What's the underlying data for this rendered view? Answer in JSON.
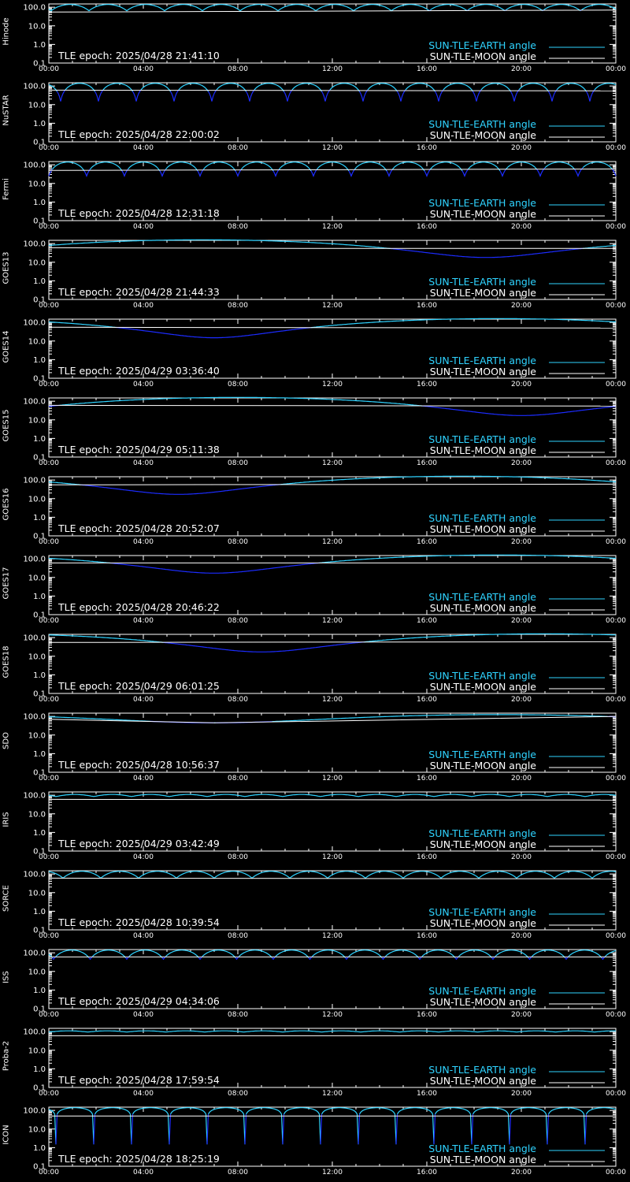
{
  "colors": {
    "earth_above": "#2fd3ff",
    "earth_below": "#1c2cff",
    "moon": "#ffffff",
    "axes": "#ffffff",
    "background": "#000000"
  },
  "legend": {
    "earth": "SUN-TLE-EARTH angle",
    "moon": "SUN-TLE-MOON angle"
  },
  "epoch_prefix": "TLE epoch: ",
  "chart_data": [
    {
      "type": "line",
      "satellite": "Hinode",
      "epoch": "2025/04/28 21:41:10",
      "x_ticks": [
        "00:00",
        "04:00",
        "08:00",
        "12:00",
        "16:00",
        "20:00",
        "00:00"
      ],
      "y_ticks": [
        "100.0",
        "10.0",
        "1.0",
        "0.1"
      ],
      "ylim": [
        0.1,
        150
      ],
      "yscale": "log",
      "xlim_hours": [
        0,
        24
      ],
      "earth": {
        "kind": "orbit",
        "period_h": 1.6,
        "max": 140,
        "min": 65,
        "phase_h": 0.1
      },
      "moon": {
        "points": [
          [
            0,
            55
          ],
          [
            24,
            70
          ]
        ]
      }
    },
    {
      "type": "line",
      "satellite": "NuSTAR",
      "epoch": "2025/04/28 22:00:02",
      "x_ticks": [
        "00:00",
        "04:00",
        "08:00",
        "12:00",
        "16:00",
        "20:00",
        "00:00"
      ],
      "y_ticks": [
        "100.0",
        "10.0",
        "1.0",
        "0.1"
      ],
      "ylim": [
        0.1,
        150
      ],
      "yscale": "log",
      "xlim_hours": [
        0,
        24
      ],
      "earth": {
        "kind": "orbit",
        "period_h": 1.6,
        "max": 140,
        "min": 15,
        "phase_h": 0.5
      },
      "moon": {
        "points": [
          [
            0,
            60
          ],
          [
            24,
            55
          ]
        ]
      }
    },
    {
      "type": "line",
      "satellite": "Fermi",
      "epoch": "2025/04/28 12:31:18",
      "x_ticks": [
        "00:00",
        "04:00",
        "08:00",
        "12:00",
        "16:00",
        "20:00",
        "00:00"
      ],
      "y_ticks": [
        "100.0",
        "10.0",
        "1.0",
        "0.1"
      ],
      "ylim": [
        0.1,
        150
      ],
      "yscale": "log",
      "xlim_hours": [
        0,
        24
      ],
      "earth": {
        "kind": "orbit",
        "period_h": 1.6,
        "max": 140,
        "min": 25,
        "phase_h": 0.0
      },
      "moon": {
        "points": [
          [
            0,
            50
          ],
          [
            24,
            60
          ]
        ]
      }
    },
    {
      "type": "line",
      "satellite": "GOES13",
      "epoch": "2025/04/28 21:44:33",
      "x_ticks": [
        "00:00",
        "04:00",
        "08:00",
        "12:00",
        "16:00",
        "20:00",
        "00:00"
      ],
      "y_ticks": [
        "100.0",
        "10.0",
        "1.0",
        "0.1"
      ],
      "ylim": [
        0.1,
        150
      ],
      "yscale": "log",
      "xlim_hours": [
        0,
        24
      ],
      "earth": {
        "kind": "geo",
        "max": 160,
        "min": 18,
        "t_min_h": 18.5
      },
      "moon": {
        "points": [
          [
            0,
            60
          ],
          [
            12,
            55
          ],
          [
            24,
            55
          ]
        ]
      }
    },
    {
      "type": "line",
      "satellite": "GOES14",
      "epoch": "2025/04/29 03:36:40",
      "x_ticks": [
        "00:00",
        "04:00",
        "08:00",
        "12:00",
        "16:00",
        "20:00",
        "00:00"
      ],
      "y_ticks": [
        "100.0",
        "10.0",
        "1.0",
        "0.1"
      ],
      "ylim": [
        0.1,
        150
      ],
      "yscale": "log",
      "xlim_hours": [
        0,
        24
      ],
      "earth": {
        "kind": "geo",
        "max": 160,
        "min": 15,
        "t_min_h": 7.0
      },
      "moon": {
        "points": [
          [
            0,
            55
          ],
          [
            24,
            50
          ]
        ]
      }
    },
    {
      "type": "line",
      "satellite": "GOES15",
      "epoch": "2025/04/29 05:11:38",
      "x_ticks": [
        "00:00",
        "04:00",
        "08:00",
        "12:00",
        "16:00",
        "20:00",
        "00:00"
      ],
      "y_ticks": [
        "100.0",
        "10.0",
        "1.0",
        "0.1"
      ],
      "ylim": [
        0.1,
        150
      ],
      "yscale": "log",
      "xlim_hours": [
        0,
        24
      ],
      "earth": {
        "kind": "geo",
        "max": 160,
        "min": 17,
        "t_min_h": 20.0
      },
      "moon": {
        "points": [
          [
            0,
            60
          ],
          [
            24,
            55
          ]
        ]
      }
    },
    {
      "type": "line",
      "satellite": "GOES16",
      "epoch": "2025/04/28 20:52:07",
      "x_ticks": [
        "00:00",
        "04:00",
        "08:00",
        "12:00",
        "16:00",
        "20:00",
        "00:00"
      ],
      "y_ticks": [
        "100.0",
        "10.0",
        "1.0",
        "0.1"
      ],
      "ylim": [
        0.1,
        150
      ],
      "yscale": "log",
      "xlim_hours": [
        0,
        24
      ],
      "earth": {
        "kind": "geo",
        "max": 160,
        "min": 17,
        "t_min_h": 5.5
      },
      "moon": {
        "points": [
          [
            0,
            55
          ],
          [
            24,
            60
          ]
        ]
      }
    },
    {
      "type": "line",
      "satellite": "GOES17",
      "epoch": "2025/04/28 20:46:22",
      "x_ticks": [
        "00:00",
        "04:00",
        "08:00",
        "12:00",
        "16:00",
        "20:00",
        "00:00"
      ],
      "y_ticks": [
        "100.0",
        "10.0",
        "1.0",
        "0.1"
      ],
      "ylim": [
        0.1,
        150
      ],
      "yscale": "log",
      "xlim_hours": [
        0,
        24
      ],
      "earth": {
        "kind": "geo",
        "max": 160,
        "min": 17,
        "t_min_h": 7.0
      },
      "moon": {
        "points": [
          [
            0,
            60
          ],
          [
            24,
            60
          ]
        ]
      }
    },
    {
      "type": "line",
      "satellite": "GOES18",
      "epoch": "2025/04/29 06:01:25",
      "x_ticks": [
        "00:00",
        "04:00",
        "08:00",
        "12:00",
        "16:00",
        "20:00",
        "00:00"
      ],
      "y_ticks": [
        "100.0",
        "10.0",
        "1.0",
        "0.1"
      ],
      "ylim": [
        0.1,
        150
      ],
      "yscale": "log",
      "xlim_hours": [
        0,
        24
      ],
      "earth": {
        "kind": "geo",
        "max": 160,
        "min": 17,
        "t_min_h": 9.0
      },
      "moon": {
        "points": [
          [
            0,
            55
          ],
          [
            24,
            60
          ]
        ]
      }
    },
    {
      "type": "line",
      "satellite": "SDO",
      "epoch": "2025/04/28 10:56:37",
      "x_ticks": [
        "00:00",
        "04:00",
        "08:00",
        "12:00",
        "16:00",
        "20:00",
        "00:00"
      ],
      "y_ticks": [
        "100.0",
        "10.0",
        "1.0",
        "0.1"
      ],
      "ylim": [
        0.1,
        150
      ],
      "yscale": "log",
      "xlim_hours": [
        0,
        24
      ],
      "earth": {
        "kind": "geo",
        "max": 125,
        "min": 45,
        "t_min_h": 7.0
      },
      "moon": {
        "points": [
          [
            0,
            70
          ],
          [
            7,
            45
          ],
          [
            24,
            100
          ]
        ]
      }
    },
    {
      "type": "line",
      "satellite": "IRIS",
      "epoch": "2025/04/29 03:42:49",
      "x_ticks": [
        "00:00",
        "04:00",
        "08:00",
        "12:00",
        "16:00",
        "20:00",
        "00:00"
      ],
      "y_ticks": [
        "100.0",
        "10.0",
        "1.0",
        "0.1"
      ],
      "ylim": [
        0.1,
        150
      ],
      "yscale": "log",
      "xlim_hours": [
        0,
        24
      ],
      "earth": {
        "kind": "orbit",
        "period_h": 1.6,
        "max": 110,
        "min": 85,
        "phase_h": 0.3
      },
      "moon": {
        "points": [
          [
            0,
            60
          ],
          [
            24,
            55
          ]
        ]
      }
    },
    {
      "type": "line",
      "satellite": "SORCE",
      "epoch": "2025/04/28 10:39:54",
      "x_ticks": [
        "00:00",
        "04:00",
        "08:00",
        "12:00",
        "16:00",
        "20:00",
        "00:00"
      ],
      "y_ticks": [
        "100.0",
        "10.0",
        "1.0",
        "0.1"
      ],
      "ylim": [
        0.1,
        150
      ],
      "yscale": "log",
      "xlim_hours": [
        0,
        24
      ],
      "earth": {
        "kind": "orbit",
        "period_h": 1.6,
        "max": 140,
        "min": 60,
        "phase_h": 0.6
      },
      "moon": {
        "points": [
          [
            0,
            60
          ],
          [
            24,
            55
          ]
        ]
      }
    },
    {
      "type": "line",
      "satellite": "ISS",
      "epoch": "2025/04/29 04:34:06",
      "x_ticks": [
        "00:00",
        "04:00",
        "08:00",
        "12:00",
        "16:00",
        "20:00",
        "00:00"
      ],
      "y_ticks": [
        "100.0",
        "10.0",
        "1.0",
        "0.1"
      ],
      "ylim": [
        0.1,
        150
      ],
      "yscale": "log",
      "xlim_hours": [
        0,
        24
      ],
      "earth": {
        "kind": "orbit",
        "period_h": 1.55,
        "max": 140,
        "min": 45,
        "phase_h": 0.2
      },
      "moon": {
        "points": [
          [
            0,
            60
          ],
          [
            24,
            60
          ]
        ]
      }
    },
    {
      "type": "line",
      "satellite": "Proba-2",
      "epoch": "2025/04/28 17:59:54",
      "x_ticks": [
        "00:00",
        "04:00",
        "08:00",
        "12:00",
        "16:00",
        "20:00",
        "00:00"
      ],
      "y_ticks": [
        "100.0",
        "10.0",
        "1.0",
        "0.1"
      ],
      "ylim": [
        0.1,
        150
      ],
      "yscale": "log",
      "xlim_hours": [
        0,
        24
      ],
      "earth": {
        "kind": "orbit",
        "period_h": 1.65,
        "max": 110,
        "min": 95,
        "phase_h": 0.0
      },
      "moon": {
        "points": [
          [
            0,
            60
          ],
          [
            24,
            60
          ]
        ]
      }
    },
    {
      "type": "line",
      "satellite": "ICON",
      "epoch": "2025/04/28 18:25:19",
      "x_ticks": [
        "00:00",
        "04:00",
        "08:00",
        "12:00",
        "16:00",
        "20:00",
        "00:00"
      ],
      "y_ticks": [
        "100.0",
        "10.0",
        "1.0",
        "0.1"
      ],
      "ylim": [
        0.1,
        150
      ],
      "yscale": "log",
      "xlim_hours": [
        0,
        24
      ],
      "earth": {
        "kind": "spike",
        "period_h": 1.6,
        "max": 140,
        "min": 1.5,
        "phase_h": 0.3
      },
      "moon": {
        "points": [
          [
            0,
            50
          ],
          [
            24,
            50
          ]
        ]
      }
    }
  ]
}
